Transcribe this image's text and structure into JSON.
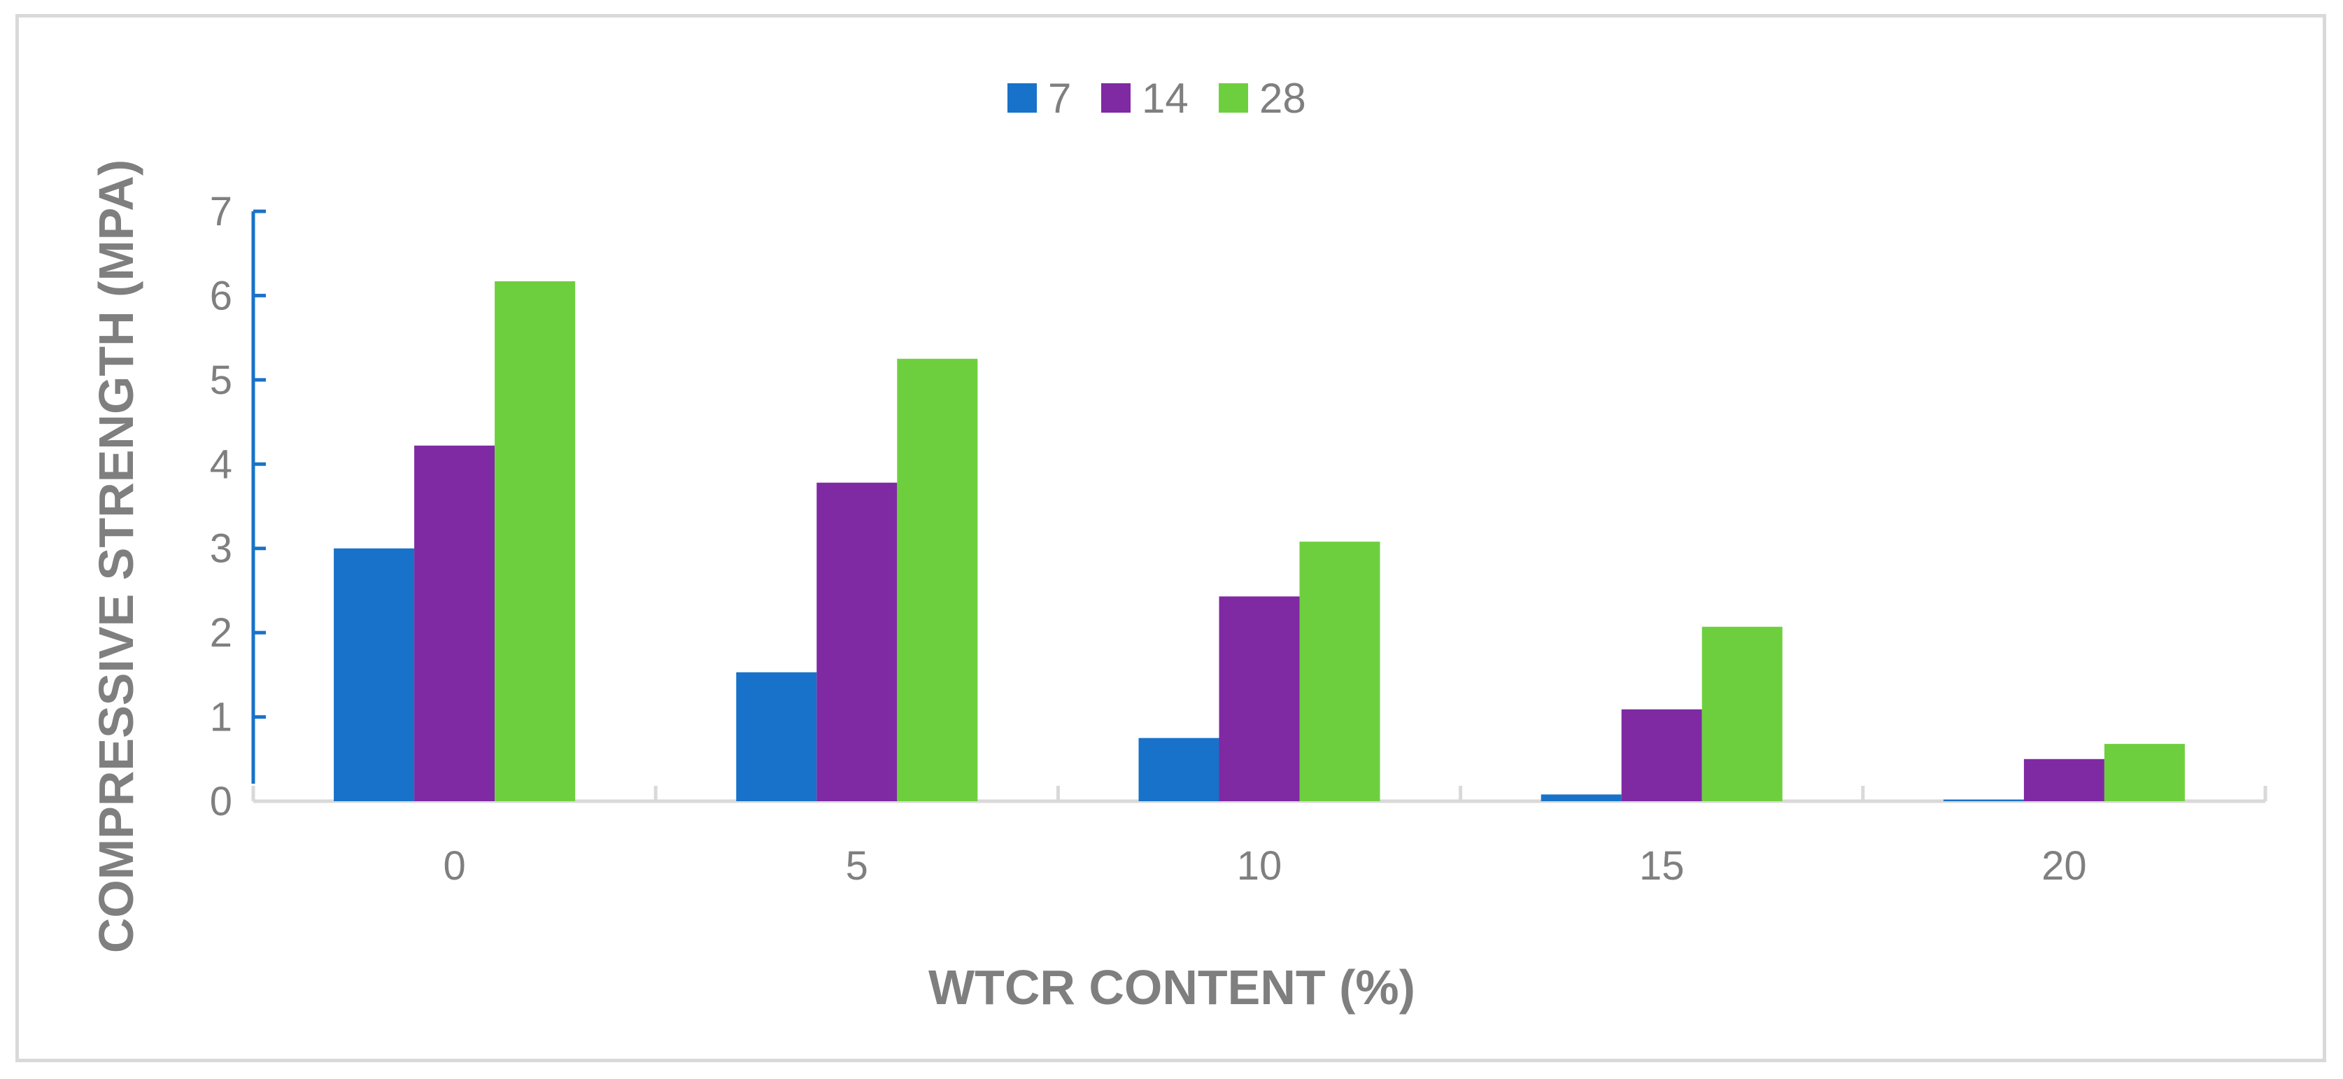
{
  "chart_data": {
    "type": "bar",
    "title": "",
    "xlabel": "WTCR CONTENT (%)",
    "ylabel": "COMPRESSIVE STRENGTH (MPA)",
    "categories": [
      "0",
      "5",
      "10",
      "15",
      "20"
    ],
    "ylim": [
      0,
      7
    ],
    "yticks": [
      "0",
      "1",
      "2",
      "3",
      "4",
      "5",
      "6",
      "7"
    ],
    "grid": false,
    "legend_position": "top-center",
    "series": [
      {
        "name": "7",
        "color": "#1872c9",
        "values": [
          3.0,
          1.53,
          0.75,
          0.08,
          0.02
        ]
      },
      {
        "name": "14",
        "color": "#7f29a3",
        "values": [
          4.22,
          3.78,
          2.43,
          1.09,
          0.5
        ]
      },
      {
        "name": "28",
        "color": "#6ecf3e",
        "values": [
          6.17,
          5.25,
          3.08,
          2.07,
          0.68
        ]
      }
    ],
    "y_axis_color": "#1872c9",
    "x_axis_color": "#d9d9d9"
  }
}
